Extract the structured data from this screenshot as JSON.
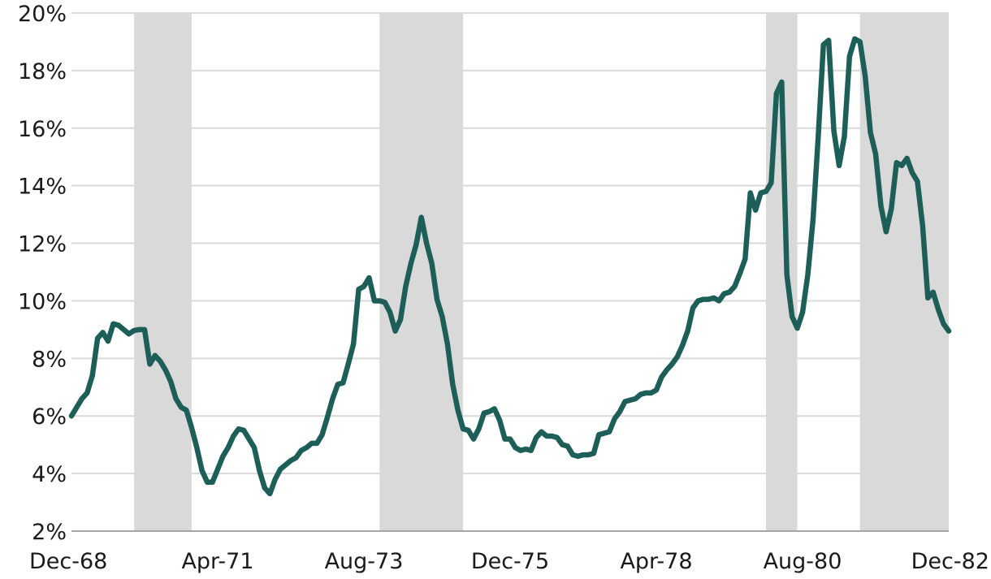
{
  "chart_data": {
    "type": "line",
    "title": "",
    "xlabel": "",
    "ylabel": "",
    "x_start": "1968-12",
    "x_end": "1982-12",
    "x_ticks": [
      "Dec-68",
      "Apr-71",
      "Aug-73",
      "Dec-75",
      "Apr-78",
      "Aug-80",
      "Dec-82"
    ],
    "y_ticks": [
      "2%",
      "4%",
      "6%",
      "8%",
      "10%",
      "12%",
      "14%",
      "16%",
      "18%",
      "20%"
    ],
    "ylim": [
      2,
      20
    ],
    "grid": "horizontal",
    "legend": "none",
    "recessions": [
      {
        "start": "1969-12",
        "end": "1970-11"
      },
      {
        "start": "1973-11",
        "end": "1975-03"
      },
      {
        "start": "1980-01",
        "end": "1980-07"
      },
      {
        "start": "1981-07",
        "end": "1982-12"
      }
    ],
    "series": [
      {
        "values": [
          [
            "1968-12",
            6.0
          ],
          [
            "1969-01",
            6.3
          ],
          [
            "1969-02",
            6.6
          ],
          [
            "1969-03",
            6.8
          ],
          [
            "1969-04",
            7.4
          ],
          [
            "1969-05",
            8.7
          ],
          [
            "1969-06",
            8.9
          ],
          [
            "1969-07",
            8.6
          ],
          [
            "1969-08",
            9.2
          ],
          [
            "1969-09",
            9.15
          ],
          [
            "1969-10",
            9.0
          ],
          [
            "1969-11",
            8.85
          ],
          [
            "1969-12",
            8.97
          ],
          [
            "1970-01",
            9.0
          ],
          [
            "1970-02",
            9.0
          ],
          [
            "1970-03",
            7.8
          ],
          [
            "1970-04",
            8.1
          ],
          [
            "1970-05",
            7.9
          ],
          [
            "1970-06",
            7.6
          ],
          [
            "1970-07",
            7.2
          ],
          [
            "1970-08",
            6.6
          ],
          [
            "1970-09",
            6.3
          ],
          [
            "1970-10",
            6.2
          ],
          [
            "1970-11",
            5.6
          ],
          [
            "1970-12",
            4.9
          ],
          [
            "1971-01",
            4.1
          ],
          [
            "1971-02",
            3.7
          ],
          [
            "1971-03",
            3.7
          ],
          [
            "1971-04",
            4.15
          ],
          [
            "1971-05",
            4.6
          ],
          [
            "1971-06",
            4.9
          ],
          [
            "1971-07",
            5.3
          ],
          [
            "1971-08",
            5.55
          ],
          [
            "1971-09",
            5.5
          ],
          [
            "1971-10",
            5.2
          ],
          [
            "1971-11",
            4.9
          ],
          [
            "1971-12",
            4.1
          ],
          [
            "1972-01",
            3.5
          ],
          [
            "1972-02",
            3.3
          ],
          [
            "1972-03",
            3.8
          ],
          [
            "1972-04",
            4.15
          ],
          [
            "1972-05",
            4.3
          ],
          [
            "1972-06",
            4.45
          ],
          [
            "1972-07",
            4.55
          ],
          [
            "1972-08",
            4.8
          ],
          [
            "1972-09",
            4.9
          ],
          [
            "1972-10",
            5.05
          ],
          [
            "1972-11",
            5.05
          ],
          [
            "1972-12",
            5.35
          ],
          [
            "1973-01",
            5.95
          ],
          [
            "1973-02",
            6.6
          ],
          [
            "1973-03",
            7.1
          ],
          [
            "1973-04",
            7.15
          ],
          [
            "1973-05",
            7.8
          ],
          [
            "1973-06",
            8.5
          ],
          [
            "1973-07",
            10.4
          ],
          [
            "1973-08",
            10.5
          ],
          [
            "1973-09",
            10.8
          ],
          [
            "1973-10",
            10.0
          ],
          [
            "1973-11",
            10.0
          ],
          [
            "1973-12",
            9.95
          ],
          [
            "1974-01",
            9.6
          ],
          [
            "1974-02",
            8.95
          ],
          [
            "1974-03",
            9.35
          ],
          [
            "1974-04",
            10.5
          ],
          [
            "1974-05",
            11.3
          ],
          [
            "1974-06",
            11.95
          ],
          [
            "1974-07",
            12.9
          ],
          [
            "1974-08",
            12.0
          ],
          [
            "1974-09",
            11.3
          ],
          [
            "1974-10",
            10.05
          ],
          [
            "1974-11",
            9.45
          ],
          [
            "1974-12",
            8.5
          ],
          [
            "1975-01",
            7.1
          ],
          [
            "1975-02",
            6.2
          ],
          [
            "1975-03",
            5.55
          ],
          [
            "1975-04",
            5.5
          ],
          [
            "1975-05",
            5.2
          ],
          [
            "1975-06",
            5.55
          ],
          [
            "1975-07",
            6.1
          ],
          [
            "1975-08",
            6.15
          ],
          [
            "1975-09",
            6.25
          ],
          [
            "1975-10",
            5.85
          ],
          [
            "1975-11",
            5.2
          ],
          [
            "1975-12",
            5.2
          ],
          [
            "1976-01",
            4.9
          ],
          [
            "1976-02",
            4.8
          ],
          [
            "1976-03",
            4.85
          ],
          [
            "1976-04",
            4.8
          ],
          [
            "1976-05",
            5.25
          ],
          [
            "1976-06",
            5.45
          ],
          [
            "1976-07",
            5.3
          ],
          [
            "1976-08",
            5.3
          ],
          [
            "1976-09",
            5.25
          ],
          [
            "1976-10",
            5.0
          ],
          [
            "1976-11",
            4.95
          ],
          [
            "1976-12",
            4.65
          ],
          [
            "1977-01",
            4.6
          ],
          [
            "1977-02",
            4.65
          ],
          [
            "1977-03",
            4.65
          ],
          [
            "1977-04",
            4.7
          ],
          [
            "1977-05",
            5.35
          ],
          [
            "1977-06",
            5.4
          ],
          [
            "1977-07",
            5.45
          ],
          [
            "1977-08",
            5.9
          ],
          [
            "1977-09",
            6.15
          ],
          [
            "1977-10",
            6.5
          ],
          [
            "1977-11",
            6.55
          ],
          [
            "1977-12",
            6.6
          ],
          [
            "1978-01",
            6.75
          ],
          [
            "1978-02",
            6.8
          ],
          [
            "1978-03",
            6.8
          ],
          [
            "1978-04",
            6.9
          ],
          [
            "1978-05",
            7.35
          ],
          [
            "1978-06",
            7.6
          ],
          [
            "1978-07",
            7.8
          ],
          [
            "1978-08",
            8.05
          ],
          [
            "1978-09",
            8.45
          ],
          [
            "1978-10",
            8.95
          ],
          [
            "1978-11",
            9.75
          ],
          [
            "1978-12",
            10.0
          ],
          [
            "1979-01",
            10.05
          ],
          [
            "1979-02",
            10.05
          ],
          [
            "1979-03",
            10.1
          ],
          [
            "1979-04",
            10.0
          ],
          [
            "1979-05",
            10.25
          ],
          [
            "1979-06",
            10.3
          ],
          [
            "1979-07",
            10.5
          ],
          [
            "1979-08",
            10.95
          ],
          [
            "1979-09",
            11.45
          ],
          [
            "1979-10",
            13.75
          ],
          [
            "1979-11",
            13.15
          ],
          [
            "1979-12",
            13.75
          ],
          [
            "1980-01",
            13.8
          ],
          [
            "1980-02",
            14.1
          ],
          [
            "1980-03",
            17.2
          ],
          [
            "1980-04",
            17.6
          ],
          [
            "1980-05",
            10.9
          ],
          [
            "1980-06",
            9.45
          ],
          [
            "1980-07",
            9.05
          ],
          [
            "1980-08",
            9.6
          ],
          [
            "1980-09",
            10.9
          ],
          [
            "1980-10",
            12.8
          ],
          [
            "1980-11",
            15.7
          ],
          [
            "1980-12",
            18.9
          ],
          [
            "1981-01",
            19.05
          ],
          [
            "1981-02",
            15.9
          ],
          [
            "1981-03",
            14.7
          ],
          [
            "1981-04",
            15.7
          ],
          [
            "1981-05",
            18.5
          ],
          [
            "1981-06",
            19.1
          ],
          [
            "1981-07",
            19.0
          ],
          [
            "1981-08",
            17.8
          ],
          [
            "1981-09",
            15.85
          ],
          [
            "1981-10",
            15.1
          ],
          [
            "1981-11",
            13.3
          ],
          [
            "1981-12",
            12.4
          ],
          [
            "1982-01",
            13.2
          ],
          [
            "1982-02",
            14.8
          ],
          [
            "1982-03",
            14.7
          ],
          [
            "1982-04",
            14.95
          ],
          [
            "1982-05",
            14.45
          ],
          [
            "1982-06",
            14.15
          ],
          [
            "1982-07",
            12.6
          ],
          [
            "1982-08",
            10.1
          ],
          [
            "1982-09",
            10.3
          ],
          [
            "1982-10",
            9.7
          ],
          [
            "1982-11",
            9.2
          ],
          [
            "1982-12",
            8.95
          ]
        ]
      }
    ]
  },
  "colors": {
    "line": "#1d5f58",
    "recession_band": "#d9d9d9",
    "gridline": "#d9d9d9",
    "axis": "#a6a6a6",
    "text": "#1a1a1a"
  }
}
